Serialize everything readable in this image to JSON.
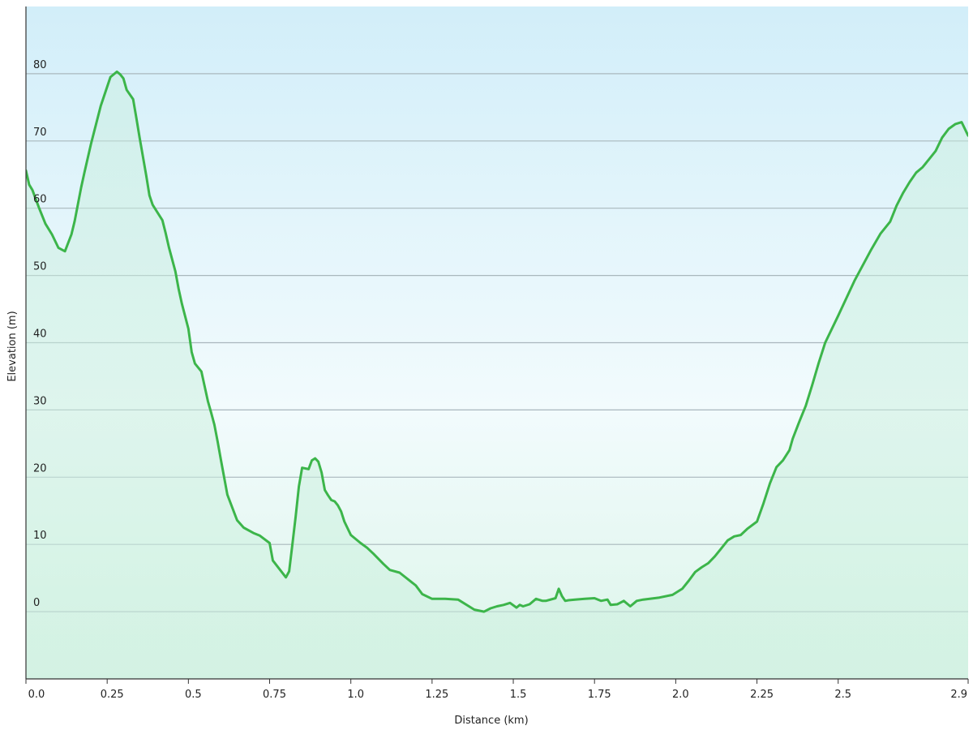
{
  "chart_data": {
    "type": "area",
    "title": "",
    "xlabel": "Distance  (km)",
    "ylabel": "Elevation (m)",
    "xlim": [
      0,
      2.9
    ],
    "ylim": [
      -10,
      90
    ],
    "grid": true,
    "x_ticks": [
      {
        "value": 0.0,
        "label": "0.0"
      },
      {
        "value": 0.25,
        "label": "0.25"
      },
      {
        "value": 0.5,
        "label": "0.5"
      },
      {
        "value": 0.75,
        "label": "0.75"
      },
      {
        "value": 1.0,
        "label": "1.0"
      },
      {
        "value": 1.25,
        "label": "1.25"
      },
      {
        "value": 1.5,
        "label": "1.5"
      },
      {
        "value": 1.75,
        "label": "1.75"
      },
      {
        "value": 2.0,
        "label": "2.0"
      },
      {
        "value": 2.25,
        "label": "2.25"
      },
      {
        "value": 2.5,
        "label": "2.5"
      },
      {
        "value": 2.9,
        "label": "2.9"
      }
    ],
    "y_ticks": [
      {
        "value": 0,
        "label": "0"
      },
      {
        "value": 10,
        "label": "10"
      },
      {
        "value": 20,
        "label": "20"
      },
      {
        "value": 30,
        "label": "30"
      },
      {
        "value": 40,
        "label": "40"
      },
      {
        "value": 50,
        "label": "50"
      },
      {
        "value": 60,
        "label": "60"
      },
      {
        "value": 70,
        "label": "70"
      },
      {
        "value": 80,
        "label": "80"
      }
    ],
    "series": [
      {
        "color": "#3cb54a",
        "x": [
          0.0,
          0.01,
          0.02,
          0.04,
          0.06,
          0.08,
          0.1,
          0.12,
          0.14,
          0.15,
          0.17,
          0.18,
          0.2,
          0.23,
          0.26,
          0.28,
          0.29,
          0.3,
          0.31,
          0.33,
          0.34,
          0.35,
          0.37,
          0.38,
          0.39,
          0.42,
          0.43,
          0.44,
          0.46,
          0.47,
          0.48,
          0.5,
          0.51,
          0.52,
          0.54,
          0.56,
          0.57,
          0.58,
          0.59,
          0.6,
          0.62,
          0.65,
          0.67,
          0.7,
          0.72,
          0.75,
          0.76,
          0.8,
          0.81,
          0.82,
          0.83,
          0.84,
          0.85,
          0.87,
          0.88,
          0.89,
          0.9,
          0.91,
          0.92,
          0.93,
          0.94,
          0.95,
          0.96,
          0.97,
          0.98,
          1.0,
          1.03,
          1.05,
          1.07,
          1.1,
          1.12,
          1.15,
          1.2,
          1.22,
          1.25,
          1.29,
          1.33,
          1.38,
          1.41,
          1.43,
          1.45,
          1.47,
          1.49,
          1.51,
          1.52,
          1.53,
          1.55,
          1.57,
          1.59,
          1.6,
          1.63,
          1.64,
          1.65,
          1.66,
          1.67,
          1.69,
          1.72,
          1.75,
          1.77,
          1.79,
          1.8,
          1.82,
          1.84,
          1.86,
          1.87,
          1.88,
          1.9,
          1.95,
          1.99,
          2.02,
          2.04,
          2.06,
          2.08,
          2.1,
          2.12,
          2.14,
          2.16,
          2.18,
          2.2,
          2.22,
          2.25,
          2.27,
          2.29,
          2.31,
          2.33,
          2.35,
          2.36,
          2.38,
          2.4,
          2.42,
          2.44,
          2.46,
          2.5,
          2.55,
          2.6,
          2.63,
          2.66,
          2.68,
          2.7,
          2.72,
          2.74,
          2.76,
          2.78,
          2.8,
          2.82,
          2.84,
          2.86,
          2.88,
          2.9
        ],
        "y": [
          65.6,
          63.5,
          62.7,
          60.1,
          57.7,
          56.1,
          54.1,
          53.6,
          56.1,
          58.1,
          63.1,
          65.3,
          69.5,
          75.2,
          79.5,
          80.3,
          79.9,
          79.3,
          77.6,
          76.2,
          73.4,
          70.5,
          64.9,
          61.9,
          60.5,
          58.2,
          56.3,
          54.2,
          50.6,
          48.0,
          45.8,
          42.1,
          38.6,
          36.9,
          35.7,
          31.3,
          29.6,
          27.8,
          25.3,
          22.6,
          17.4,
          13.6,
          12.5,
          11.7,
          11.3,
          10.2,
          7.6,
          5.1,
          6.0,
          10.0,
          14.1,
          18.6,
          21.4,
          21.2,
          22.5,
          22.8,
          22.3,
          20.7,
          18.1,
          17.3,
          16.6,
          16.4,
          15.8,
          14.9,
          13.4,
          11.4,
          10.2,
          9.5,
          8.6,
          7.1,
          6.2,
          5.8,
          3.9,
          2.6,
          1.9,
          1.9,
          1.8,
          0.3,
          0.0,
          0.5,
          0.8,
          1.0,
          1.3,
          0.6,
          1.0,
          0.8,
          1.1,
          1.9,
          1.6,
          1.6,
          2.0,
          3.4,
          2.3,
          1.6,
          1.7,
          1.8,
          1.9,
          2.0,
          1.6,
          1.8,
          1.0,
          1.1,
          1.6,
          0.8,
          1.2,
          1.6,
          1.8,
          2.1,
          2.5,
          3.4,
          4.6,
          5.9,
          6.6,
          7.2,
          8.2,
          9.4,
          10.6,
          11.2,
          11.4,
          12.3,
          13.4,
          16.1,
          19.1,
          21.5,
          22.5,
          24.0,
          25.7,
          28.2,
          30.6,
          33.7,
          37.0,
          40.0,
          44.0,
          49.2,
          53.7,
          56.2,
          58.0,
          60.4,
          62.3,
          63.9,
          65.3,
          66.1,
          67.3,
          68.5,
          70.5,
          71.8,
          72.5,
          72.8,
          70.8
        ]
      }
    ]
  }
}
